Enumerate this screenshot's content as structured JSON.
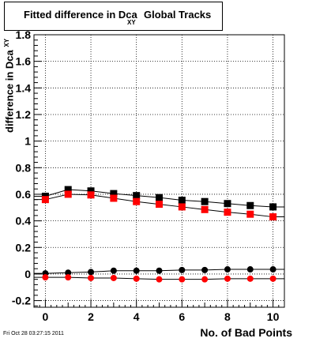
{
  "chart_data": {
    "type": "scatter",
    "title": "Fitted difference in Dca",
    "title_subscript": "XY",
    "title_suffix": "Global Tracks",
    "ylabel": "difference in Dca",
    "ylabel_subscript": "XY",
    "xlabel": "No. of Bad Points",
    "xlim": [
      -0.5,
      10.5
    ],
    "ylim": [
      -0.25,
      1.8
    ],
    "x_ticks": [
      "0",
      "2",
      "4",
      "6",
      "8",
      "10"
    ],
    "y_ticks": [
      "-0.2",
      "0",
      "0.2",
      "0.4",
      "0.6",
      "0.8",
      "1",
      "1.2",
      "1.4",
      "1.6",
      "1.8"
    ],
    "grid": true,
    "series": [
      {
        "marker": "square",
        "color": "#000000",
        "x": [
          0,
          1,
          2,
          3,
          4,
          5,
          6,
          7,
          8,
          9,
          10
        ],
        "y": [
          0.585,
          0.635,
          0.625,
          0.605,
          0.59,
          0.575,
          0.555,
          0.545,
          0.53,
          0.515,
          0.505
        ]
      },
      {
        "marker": "square",
        "color": "#ff0000",
        "x": [
          0,
          1,
          2,
          3,
          4,
          5,
          6,
          7,
          8,
          9,
          10
        ],
        "y": [
          0.56,
          0.6,
          0.595,
          0.57,
          0.545,
          0.525,
          0.505,
          0.485,
          0.465,
          0.45,
          0.43
        ]
      },
      {
        "marker": "circle",
        "color": "#000000",
        "x": [
          0,
          1,
          2,
          3,
          4,
          5,
          6,
          7,
          8,
          9,
          10
        ],
        "y": [
          0.005,
          0.01,
          0.015,
          0.025,
          0.025,
          0.025,
          0.03,
          0.03,
          0.035,
          0.035,
          0.035
        ]
      },
      {
        "marker": "circle",
        "color": "#ff0000",
        "x": [
          0,
          1,
          2,
          3,
          4,
          5,
          6,
          7,
          8,
          9,
          10
        ],
        "y": [
          -0.025,
          -0.025,
          -0.03,
          -0.03,
          -0.035,
          -0.04,
          -0.04,
          -0.04,
          -0.035,
          -0.035,
          -0.035
        ]
      }
    ]
  },
  "footer": {
    "timestamp": "Fri Oct 28 03:27:15 2011"
  }
}
